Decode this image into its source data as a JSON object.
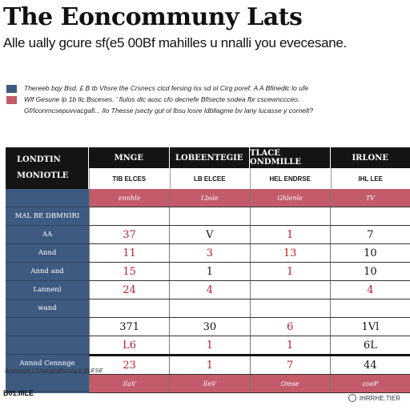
{
  "title": "The Eoncommuny Lats",
  "subtitle": "Alle ually gcure sf(e5 00Bf mahilles u nnalli you evecesane.",
  "legend": {
    "items": [
      {
        "color": "#3f5a80",
        "text": "Thereeb bqy Bsd. £ B tb Vhsre the Crsnecs clcd fersing lss sd ol Cirg poref. A A Bfinedlc lo ufe"
      },
      {
        "color": "#c35b6b",
        "text": "Wlf Gesune lp 1b llc Bsceses. ' fiulos dlc ausc cfo decnefe Bfisecte sodea fbr cscewnccceo."
      }
    ],
    "extra": "Gf/Iconmcsepuvvacgafi... llo Thesse jsecty gut ol lbsu losre ldbllagme bv lany lucasse y cornelt?"
  },
  "table": {
    "header_label": [
      "LONDTIN",
      "MONIOTLE"
    ],
    "columns": [
      {
        "top": "MNGE",
        "bottom": "TIB ELCES"
      },
      {
        "top": "LOBEENTEGIE",
        "bottom": "LB ELCEE"
      },
      {
        "top": "TLACE ONDMILLE",
        "bottom": "HEL ENDRSE"
      },
      {
        "top": "IRLONE",
        "bottom": "IHL LEE"
      }
    ],
    "rows": [
      {
        "label": "",
        "style": "pink",
        "cells": [
          "ennhle",
          "Lbsle",
          "Ghlenle",
          "TV"
        ]
      },
      {
        "label": "MAL BE DBMNIRI",
        "style": "",
        "cells": [
          "",
          "",
          "",
          ""
        ]
      },
      {
        "label": "AA",
        "style": "",
        "cells": [
          "37",
          "V",
          "1",
          "7"
        ],
        "colors": [
          "red",
          "blk",
          "red",
          "blk"
        ]
      },
      {
        "label": "Annd",
        "style": "",
        "cells": [
          "11",
          "3",
          "13",
          "10"
        ],
        "colors": [
          "red",
          "red",
          "red",
          "blk"
        ]
      },
      {
        "label": "Annd and",
        "style": "",
        "cells": [
          "15",
          "1",
          "1",
          "10"
        ],
        "colors": [
          "red",
          "blk",
          "red",
          "blk"
        ]
      },
      {
        "label": "Lannenl",
        "style": "",
        "cells": [
          "24",
          "4",
          "",
          "4"
        ],
        "colors": [
          "red",
          "red",
          "red",
          "red"
        ]
      },
      {
        "label": "wand",
        "style": "",
        "cells": [
          "",
          "",
          "",
          ""
        ]
      },
      {
        "label": "",
        "style": "",
        "cells": [
          "371",
          "30",
          "6",
          "1Vl"
        ],
        "colors": [
          "blk",
          "blk",
          "red",
          "blk"
        ]
      },
      {
        "label": "",
        "style": "thick",
        "cells": [
          "L6",
          "1",
          "1",
          "6L"
        ],
        "colors": [
          "red",
          "red",
          "red",
          "blk"
        ]
      },
      {
        "label": "Annnd Cennnge",
        "style": "",
        "cells": [
          "23",
          "1",
          "7",
          "44"
        ],
        "colors": [
          "red",
          "red",
          "red",
          "blk"
        ]
      },
      {
        "label": "",
        "style": "pink",
        "cells": [
          "IlaV",
          "llnV",
          "Omse",
          "coeP"
        ]
      }
    ]
  },
  "footnote": "Ameende Lf(Asngeglfumcg lf BLESE",
  "footer_left": "B01.IIILE",
  "footer_right": "IHRRHE.TIER"
}
